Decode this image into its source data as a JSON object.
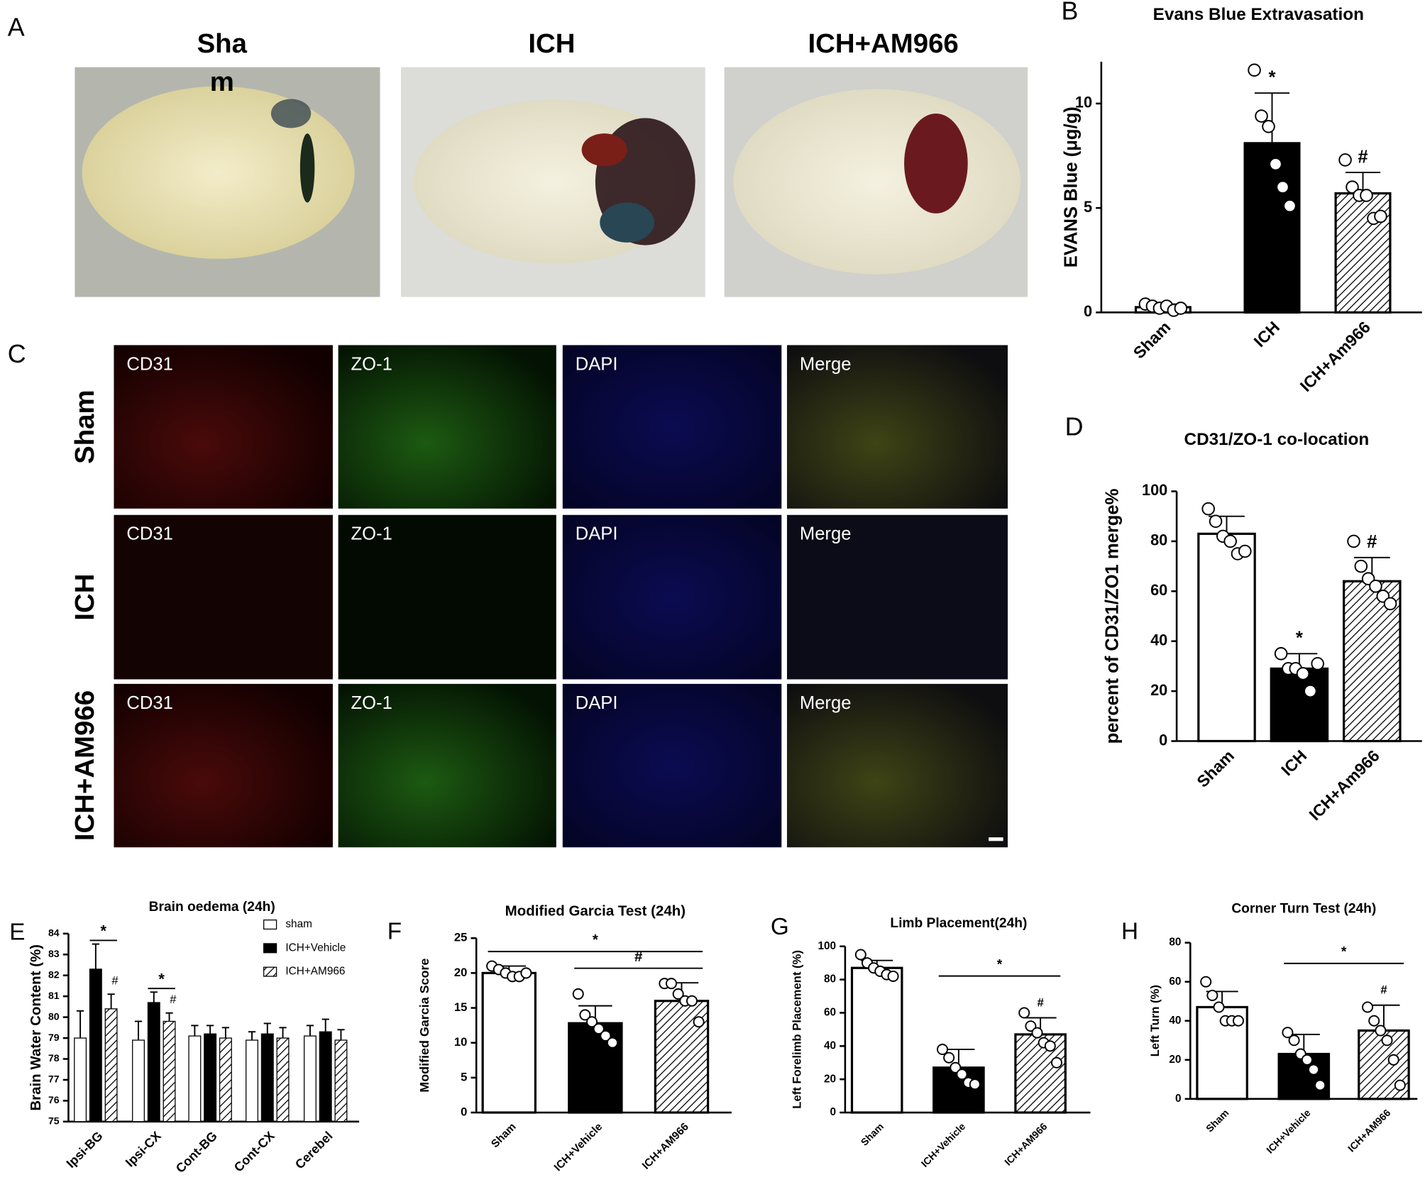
{
  "panel_a": {
    "label": "A",
    "images": [
      {
        "label_lines": [
          "Sha",
          "m"
        ]
      },
      {
        "label_lines": [
          "ICH"
        ]
      },
      {
        "label_lines": [
          "ICH+AM966"
        ]
      }
    ]
  },
  "panel_c": {
    "label": "C",
    "rows": [
      "Sham",
      "ICH",
      "ICH+AM966"
    ],
    "columns": [
      "CD31",
      "ZO-1",
      "DAPI",
      "Merge"
    ]
  },
  "chart_data": [
    {
      "type": "bar",
      "panel_label": "B",
      "title": "Evans Blue Extravasation",
      "y_label": "EVANS Blue (μg/g)",
      "categories": [
        "Sham",
        "ICH",
        "ICH+Am966"
      ],
      "values": [
        0.25,
        8.1,
        5.7
      ],
      "errors": [
        0.15,
        2.4,
        1.0
      ],
      "points": [
        [
          0.4,
          0.3,
          0.2,
          0.3,
          0.1,
          0.2
        ],
        [
          11.6,
          9.4,
          8.9,
          7.1,
          6.0,
          5.1
        ],
        [
          7.3,
          6.0,
          5.6,
          5.6,
          4.5,
          4.6
        ]
      ],
      "colors": [
        "#ffffff",
        "#000000",
        "#ffffff"
      ],
      "hatched": [
        false,
        false,
        true
      ],
      "markers": [
        null,
        "*",
        "#"
      ],
      "ylim": [
        0,
        12
      ],
      "yticks": [
        0,
        5,
        10
      ]
    },
    {
      "type": "bar",
      "panel_label": "D",
      "title": "CD31/ZO-1 co-location",
      "y_label": "percent of CD31/ZO1 merge%",
      "categories": [
        "Sham",
        "ICH",
        "ICH+Am966"
      ],
      "values": [
        83,
        29,
        64
      ],
      "errors": [
        7,
        6,
        9.5
      ],
      "points": [
        [
          93,
          88,
          82,
          80,
          75,
          76
        ],
        [
          35,
          29,
          29,
          27,
          20,
          31
        ],
        [
          80,
          70,
          65,
          62,
          58,
          55
        ]
      ],
      "colors": [
        "#ffffff",
        "#000000",
        "#ffffff"
      ],
      "hatched": [
        false,
        false,
        true
      ],
      "markers": [
        null,
        "*",
        "#"
      ],
      "ylim": [
        0,
        100
      ],
      "yticks": [
        0,
        20,
        40,
        60,
        80,
        100
      ]
    },
    {
      "type": "grouped_bar",
      "panel_label": "E",
      "title": "Brain oedema (24h)",
      "y_label": "Brain Water Content (%)",
      "categories": [
        "Ipsi-BG",
        "Ipsi-CX",
        "Cont-BG",
        "Cont-CX",
        "Cerebel"
      ],
      "series": [
        {
          "name": "sham",
          "color": "#ffffff",
          "hatched": false,
          "values": [
            79.0,
            78.9,
            79.1,
            78.9,
            79.1
          ],
          "errors": [
            1.3,
            0.9,
            0.5,
            0.4,
            0.5
          ],
          "markers": [
            null,
            null,
            null,
            null,
            null
          ]
        },
        {
          "name": "ICH+Vehicle",
          "color": "#000000",
          "hatched": false,
          "values": [
            82.3,
            80.7,
            79.2,
            79.2,
            79.3
          ],
          "errors": [
            1.2,
            0.5,
            0.4,
            0.5,
            0.6
          ],
          "markers": [
            null,
            null,
            null,
            null,
            null
          ]
        },
        {
          "name": "ICH+AM966",
          "color": "#ffffff",
          "hatched": true,
          "values": [
            80.4,
            79.8,
            79.0,
            79.0,
            78.9
          ],
          "errors": [
            0.7,
            0.4,
            0.5,
            0.5,
            0.5
          ],
          "markers": [
            "#",
            "#",
            null,
            null,
            null
          ]
        }
      ],
      "group_brackets": [
        {
          "text": "*",
          "category": "Ipsi-BG"
        },
        {
          "text": "*",
          "category": "Ipsi-CX"
        }
      ],
      "ylim": [
        75,
        84
      ],
      "yticks": [
        75,
        76,
        77,
        78,
        79,
        80,
        81,
        82,
        83,
        84
      ],
      "legend": "upper right"
    },
    {
      "type": "bar",
      "panel_label": "F",
      "title": "Modified Garcia Test (24h)",
      "y_label": "Modified Garcia Score",
      "categories": [
        "Sham",
        "ICH+Vehicle",
        "ICH+AM966"
      ],
      "values": [
        20,
        12.8,
        16
      ],
      "errors": [
        1,
        2.5,
        2.6
      ],
      "points": [
        [
          21,
          20.5,
          20,
          19.5,
          19.5,
          20
        ],
        [
          17,
          14,
          13,
          12,
          11,
          10
        ],
        [
          18.5,
          18.5,
          17,
          16,
          16,
          13
        ]
      ],
      "colors": [
        "#ffffff",
        "#000000",
        "#ffffff"
      ],
      "hatched": [
        false,
        false,
        true
      ],
      "markers": [
        null,
        null,
        null
      ],
      "brackets": [
        {
          "text": "*",
          "from": "Sham",
          "to": "ICH+AM966"
        },
        {
          "text": "#",
          "from": "ICH+Vehicle",
          "to": "ICH+AM966"
        }
      ],
      "ylim": [
        0,
        25
      ],
      "yticks": [
        0,
        5,
        10,
        15,
        20,
        25
      ]
    },
    {
      "type": "bar",
      "panel_label": "G",
      "title": "Limb Placement(24h)",
      "y_label": "Left Forelimb Placement (%)",
      "categories": [
        "Sham",
        "ICH+Vehicle",
        "ICH+AM966"
      ],
      "values": [
        87,
        27,
        47
      ],
      "errors": [
        4.5,
        11,
        10
      ],
      "points": [
        [
          95,
          90,
          87,
          85,
          83,
          82
        ],
        [
          38,
          33,
          27,
          23,
          18,
          17
        ],
        [
          60,
          52,
          48,
          42,
          40,
          30
        ]
      ],
      "colors": [
        "#ffffff",
        "#000000",
        "#ffffff"
      ],
      "hatched": [
        false,
        false,
        true
      ],
      "markers": [
        null,
        null,
        "#"
      ],
      "brackets": [
        {
          "text": "*",
          "from": "ICH+Vehicle",
          "to": "ICH+AM966"
        }
      ],
      "ylim": [
        0,
        100
      ],
      "yticks": [
        0,
        20,
        40,
        60,
        80,
        100
      ]
    },
    {
      "type": "bar",
      "panel_label": "H",
      "title": "Corner Turn Test (24h)",
      "y_label": "Left Turn (%)",
      "categories": [
        "Sham",
        "ICH+Vehicle",
        "ICH+AM966"
      ],
      "values": [
        47,
        23,
        35
      ],
      "errors": [
        8,
        10,
        13
      ],
      "points": [
        [
          60,
          53,
          47,
          40,
          40,
          40
        ],
        [
          34,
          30,
          23,
          20,
          15,
          7
        ],
        [
          47,
          40,
          35,
          30,
          20,
          7
        ]
      ],
      "colors": [
        "#ffffff",
        "#000000",
        "#ffffff"
      ],
      "hatched": [
        false,
        false,
        true
      ],
      "markers": [
        null,
        null,
        "#"
      ],
      "brackets": [
        {
          "text": "*",
          "from": "ICH+Vehicle",
          "to": "ICH+AM966"
        }
      ],
      "ylim": [
        0,
        80
      ],
      "yticks": [
        0,
        20,
        40,
        60,
        80
      ]
    }
  ]
}
